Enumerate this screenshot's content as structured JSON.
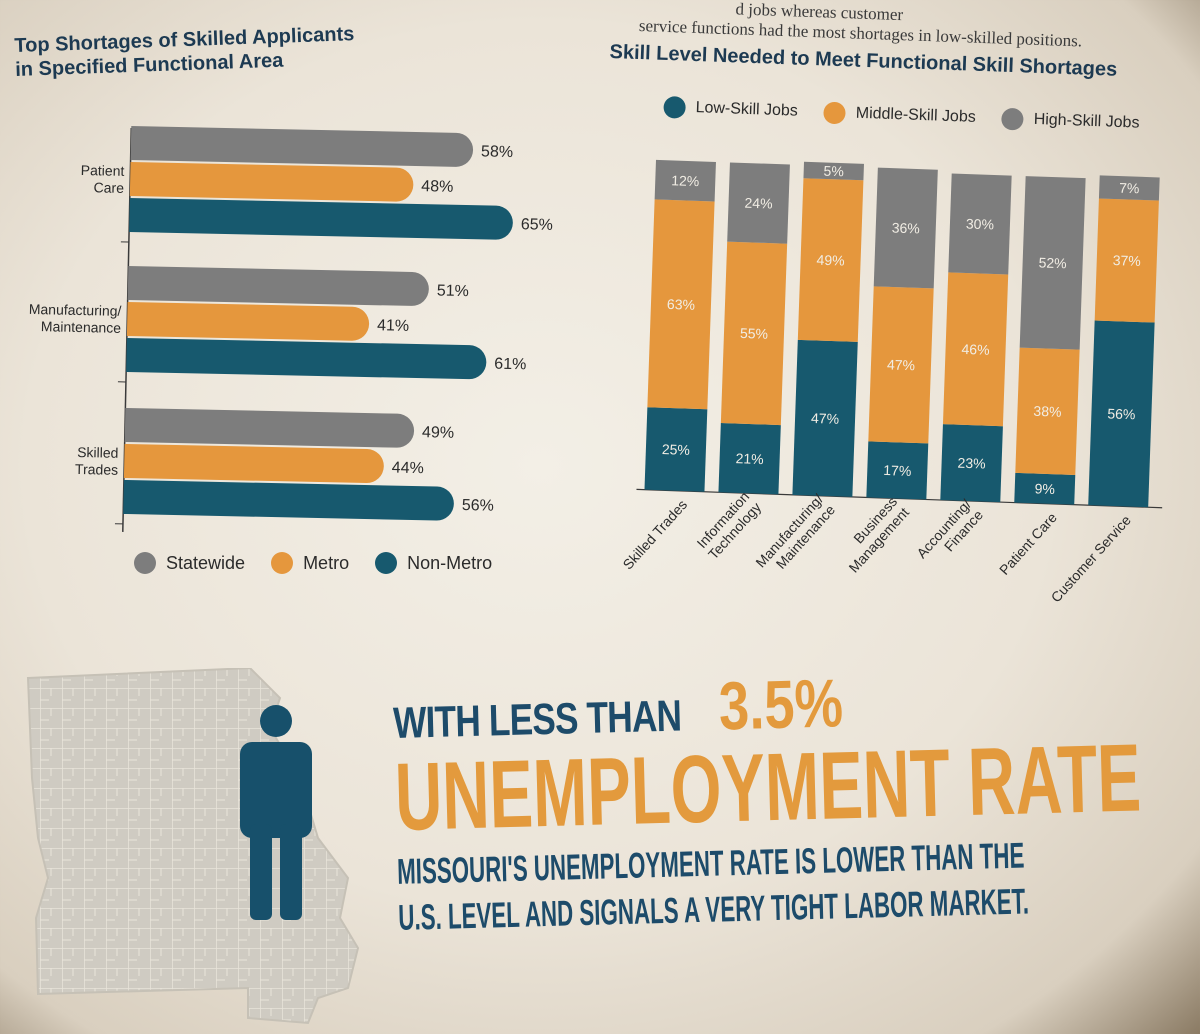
{
  "header_text": {
    "line1": "d jobs whereas customer",
    "line2": "service functions had the most shortages in low-skilled positions."
  },
  "colors": {
    "statewide": "#7d7d7d",
    "metro": "#e5973d",
    "non_metro": "#17596e",
    "title": "#1d3a52",
    "accent": "#e39a3d"
  },
  "chart_data": [
    {
      "type": "bar",
      "orientation": "horizontal",
      "title": "Top Shortages of Skilled Applicants in Specified Functional Area",
      "title_lines": [
        "Top Shortages of Skilled Applicants",
        "in Specified Functional Area"
      ],
      "categories": [
        "Patient Care",
        "Manufacturing/ Maintenance",
        "Skilled Trades"
      ],
      "category_lines": [
        [
          "Patient",
          "Care"
        ],
        [
          "Manufacturing/",
          "Maintenance"
        ],
        [
          "Skilled",
          "Trades"
        ]
      ],
      "series": [
        {
          "name": "Statewide",
          "values": [
            58,
            51,
            49
          ],
          "labels": [
            "58%",
            "51%",
            "49%"
          ]
        },
        {
          "name": "Metro",
          "values": [
            48,
            41,
            44
          ],
          "labels": [
            "48%",
            "41%",
            "44%"
          ]
        },
        {
          "name": "Non-Metro",
          "values": [
            65,
            61,
            56
          ],
          "labels": [
            "65%",
            "61%",
            "56%"
          ]
        }
      ],
      "xlim": [
        0,
        100
      ],
      "legend_position": "bottom"
    },
    {
      "type": "bar",
      "stacked": true,
      "title": "Skill Level Needed to Meet Functional Skill Shortages",
      "categories": [
        "Skilled Trades",
        "Information Technology",
        "Manufacturing/ Maintenance",
        "Business Management",
        "Accounting/ Finance",
        "Patient Care",
        "Customer Service"
      ],
      "category_lines": [
        [
          "Skilled Trades"
        ],
        [
          "Information",
          "Technology"
        ],
        [
          "Manufacturing/",
          "Maintenance"
        ],
        [
          "Business",
          "Management"
        ],
        [
          "Accounting/",
          "Finance"
        ],
        [
          "Patient Care"
        ],
        [
          "Customer Service"
        ]
      ],
      "series": [
        {
          "name": "Low-Skill Jobs",
          "values": [
            25,
            21,
            47,
            17,
            23,
            9,
            56
          ],
          "labels": [
            "25%",
            "21%",
            "47%",
            "17%",
            "23%",
            "9%",
            "56%"
          ]
        },
        {
          "name": "Middle-Skill Jobs",
          "values": [
            63,
            55,
            49,
            47,
            46,
            38,
            37
          ],
          "labels": [
            "63%",
            "55%",
            "49%",
            "47%",
            "46%",
            "38%",
            "37%"
          ]
        },
        {
          "name": "High-Skill Jobs",
          "values": [
            12,
            24,
            5,
            36,
            30,
            52,
            7
          ],
          "labels": [
            "12%",
            "24%",
            "5%",
            "36%",
            "30%",
            "52%",
            "7%"
          ]
        }
      ],
      "ylim": [
        0,
        100
      ],
      "legend_position": "top"
    }
  ],
  "headline": {
    "prefix": "WITH LESS THAN",
    "value": "3.5%",
    "main": "UNEMPLOYMENT RATE",
    "sub_line1": "MISSOURI'S UNEMPLOYMENT RATE IS LOWER THAN THE",
    "sub_line2": "U.S. LEVEL AND SIGNALS A VERY TIGHT LABOR MARKET."
  },
  "icons": {
    "map": "missouri-county-map-icon",
    "person": "person-icon"
  }
}
